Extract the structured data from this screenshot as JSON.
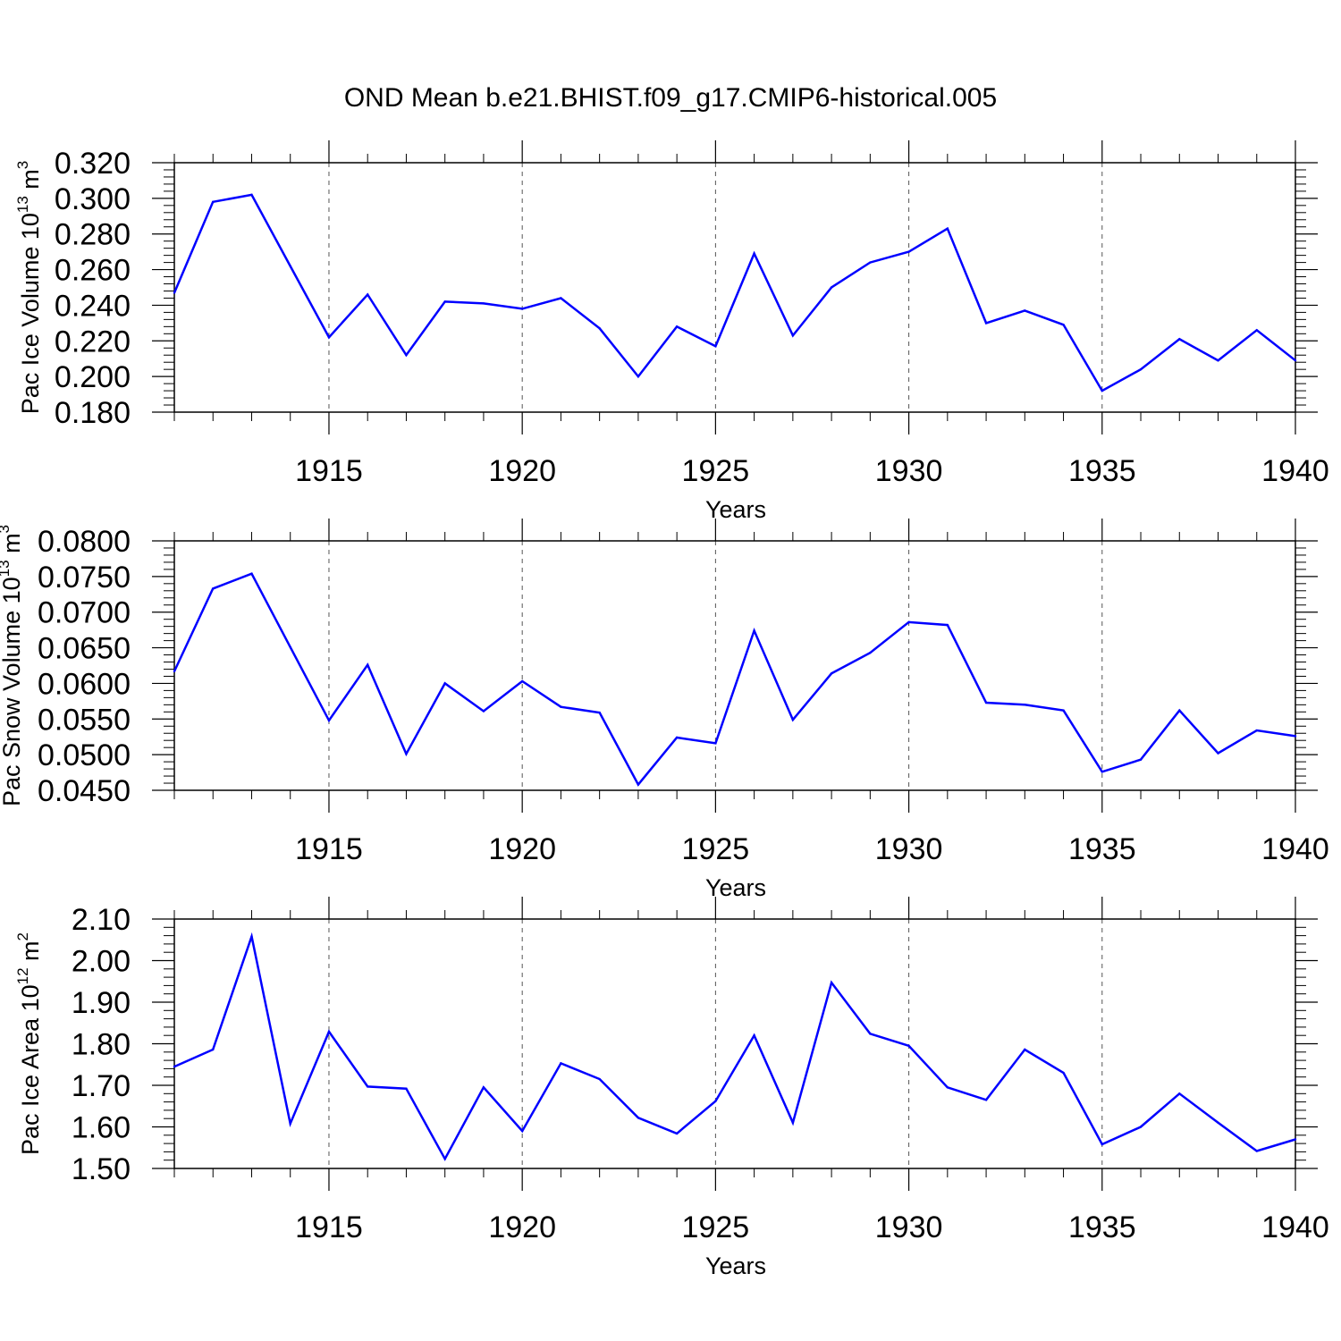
{
  "title": "OND Mean b.e21.BHIST.f09_g17.CMIP6-historical.005",
  "line_color": "#0000ff",
  "chart_data": [
    {
      "type": "line",
      "ylabel": "Pac Ice Volume 10",
      "ylabel_exp": "13",
      "ylabel_unit": " m",
      "ylabel_unit_exp": "3",
      "xlabel": "Years",
      "xlim": [
        1911,
        1940
      ],
      "ylim": [
        0.18,
        0.32
      ],
      "yticks": [
        0.18,
        0.2,
        0.22,
        0.24,
        0.26,
        0.28,
        0.3,
        0.32
      ],
      "ytick_labels": [
        "0.180",
        "0.200",
        "0.220",
        "0.240",
        "0.260",
        "0.280",
        "0.300",
        "0.320"
      ],
      "xticks": [
        1915,
        1920,
        1925,
        1930,
        1935,
        1940
      ],
      "xtick_labels": [
        "1915",
        "1920",
        "1925",
        "1930",
        "1935",
        "1940"
      ],
      "x": [
        1911,
        1912,
        1913,
        1914,
        1915,
        1916,
        1917,
        1918,
        1919,
        1920,
        1921,
        1922,
        1923,
        1924,
        1925,
        1926,
        1927,
        1928,
        1929,
        1930,
        1931,
        1932,
        1933,
        1934,
        1935,
        1936,
        1937,
        1938,
        1939,
        1940
      ],
      "series": [
        {
          "name": "Pac Ice Volume",
          "values": [
            0.247,
            0.298,
            0.302,
            0.262,
            0.222,
            0.246,
            0.212,
            0.242,
            0.241,
            0.238,
            0.244,
            0.227,
            0.2,
            0.228,
            0.217,
            0.269,
            0.223,
            0.25,
            0.264,
            0.27,
            0.283,
            0.23,
            0.237,
            0.229,
            0.192,
            0.204,
            0.221,
            0.209,
            0.226,
            0.209
          ]
        }
      ]
    },
    {
      "type": "line",
      "ylabel": "Pac Snow Volume 10",
      "ylabel_exp": "13",
      "ylabel_unit": " m",
      "ylabel_unit_exp": "3",
      "xlabel": "Years",
      "xlim": [
        1911,
        1940
      ],
      "ylim": [
        0.045,
        0.08
      ],
      "yticks": [
        0.045,
        0.05,
        0.055,
        0.06,
        0.065,
        0.07,
        0.075,
        0.08
      ],
      "ytick_labels": [
        "0.0450",
        "0.0500",
        "0.0550",
        "0.0600",
        "0.0650",
        "0.0700",
        "0.0750",
        "0.0800"
      ],
      "xticks": [
        1915,
        1920,
        1925,
        1930,
        1935,
        1940
      ],
      "xtick_labels": [
        "1915",
        "1920",
        "1925",
        "1930",
        "1935",
        "1940"
      ],
      "x": [
        1911,
        1912,
        1913,
        1914,
        1915,
        1916,
        1917,
        1918,
        1919,
        1920,
        1921,
        1922,
        1923,
        1924,
        1925,
        1926,
        1927,
        1928,
        1929,
        1930,
        1931,
        1932,
        1933,
        1934,
        1935,
        1936,
        1937,
        1938,
        1939,
        1940
      ],
      "series": [
        {
          "name": "Pac Snow Volume",
          "values": [
            0.0617,
            0.0733,
            0.0754,
            0.0651,
            0.0548,
            0.0626,
            0.0501,
            0.06,
            0.0561,
            0.0603,
            0.0567,
            0.0559,
            0.0458,
            0.0524,
            0.0516,
            0.0674,
            0.0549,
            0.0614,
            0.0643,
            0.0686,
            0.0682,
            0.0573,
            0.057,
            0.0562,
            0.0476,
            0.0493,
            0.0562,
            0.0502,
            0.0534,
            0.0526
          ]
        }
      ]
    },
    {
      "type": "line",
      "ylabel": "Pac Ice Area 10",
      "ylabel_exp": "12",
      "ylabel_unit": " m",
      "ylabel_unit_exp": "2",
      "xlabel": "Years",
      "xlim": [
        1911,
        1940
      ],
      "ylim": [
        1.5,
        2.1
      ],
      "yticks": [
        1.5,
        1.6,
        1.7,
        1.8,
        1.9,
        2.0,
        2.1
      ],
      "ytick_labels": [
        "1.50",
        "1.60",
        "1.70",
        "1.80",
        "1.90",
        "2.00",
        "2.10"
      ],
      "xticks": [
        1915,
        1920,
        1925,
        1930,
        1935,
        1940
      ],
      "xtick_labels": [
        "1915",
        "1920",
        "1925",
        "1930",
        "1935",
        "1940"
      ],
      "x": [
        1911,
        1912,
        1913,
        1914,
        1915,
        1916,
        1917,
        1918,
        1919,
        1920,
        1921,
        1922,
        1923,
        1924,
        1925,
        1926,
        1927,
        1928,
        1929,
        1930,
        1931,
        1932,
        1933,
        1934,
        1935,
        1936,
        1937,
        1938,
        1939,
        1940
      ],
      "series": [
        {
          "name": "Pac Ice Area",
          "values": [
            1.745,
            1.786,
            2.058,
            1.608,
            1.829,
            1.697,
            1.692,
            1.523,
            1.695,
            1.59,
            1.753,
            1.715,
            1.622,
            1.584,
            1.662,
            1.82,
            1.61,
            1.947,
            1.824,
            1.795,
            1.695,
            1.665,
            1.786,
            1.73,
            1.558,
            1.6,
            1.68,
            1.61,
            1.542,
            1.57
          ]
        }
      ]
    }
  ]
}
